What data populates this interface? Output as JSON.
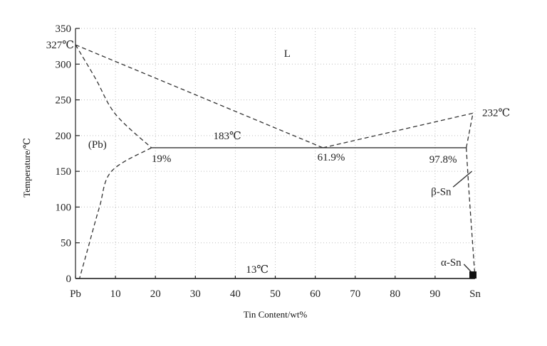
{
  "chart_data": {
    "type": "line",
    "xlabel": "Tin Content/wt%",
    "ylabel": "Temperature/℃",
    "xlim": [
      0,
      100
    ],
    "ylim": [
      0,
      350
    ],
    "x_ticks": [
      {
        "value": 0,
        "label": "Pb"
      },
      {
        "value": 10,
        "label": "10"
      },
      {
        "value": 20,
        "label": "20"
      },
      {
        "value": 30,
        "label": "30"
      },
      {
        "value": 40,
        "label": "40"
      },
      {
        "value": 50,
        "label": "50"
      },
      {
        "value": 60,
        "label": "60"
      },
      {
        "value": 70,
        "label": "70"
      },
      {
        "value": 80,
        "label": "80"
      },
      {
        "value": 90,
        "label": "90"
      },
      {
        "value": 100,
        "label": "Sn"
      }
    ],
    "y_ticks": [
      "0",
      "50",
      "100",
      "150",
      "200",
      "250",
      "300",
      "350"
    ],
    "grid": true,
    "series": [
      {
        "style": "dashed",
        "points": [
          [
            0,
            327
          ],
          [
            61.9,
            183
          ]
        ]
      },
      {
        "style": "dashed",
        "points": [
          [
            61.9,
            183
          ],
          [
            100,
            232
          ]
        ]
      },
      {
        "style": "dashed",
        "points": [
          [
            0,
            327
          ],
          [
            5,
            280
          ],
          [
            10,
            230
          ],
          [
            19,
            183
          ]
        ]
      },
      {
        "style": "dashed",
        "points": [
          [
            19,
            183
          ],
          [
            9,
            150
          ],
          [
            6,
            100
          ],
          [
            3,
            40
          ],
          [
            1,
            0
          ]
        ]
      },
      {
        "style": "solid",
        "points": [
          [
            19,
            183
          ],
          [
            97.8,
            183
          ]
        ]
      },
      {
        "style": "dashed",
        "points": [
          [
            97.8,
            183
          ],
          [
            99.5,
            232
          ]
        ]
      },
      {
        "style": "dashed",
        "points": [
          [
            97.8,
            183
          ],
          [
            98.5,
            120
          ],
          [
            99.5,
            40
          ],
          [
            100,
            0
          ]
        ]
      },
      {
        "style": "solid",
        "points": [
          [
            0,
            0
          ],
          [
            100,
            0
          ]
        ]
      }
    ],
    "annotations": [
      {
        "text": "327℃",
        "x": 0,
        "y": 327
      },
      {
        "text": "L",
        "x": 53,
        "y": 315
      },
      {
        "text": "232℃",
        "x": 100,
        "y": 232
      },
      {
        "text": "(Pb)",
        "x": 5.5,
        "y": 188
      },
      {
        "text": "183℃",
        "x": 38,
        "y": 200
      },
      {
        "text": "19%",
        "x": 21.5,
        "y": 168
      },
      {
        "text": "61.9%",
        "x": 64,
        "y": 170
      },
      {
        "text": "97.8%",
        "x": 92,
        "y": 167
      },
      {
        "text": "β-Sn",
        "x": 91.5,
        "y": 122
      },
      {
        "text": "α-Sn",
        "x": 94,
        "y": 23
      },
      {
        "text": "13℃",
        "x": 45.5,
        "y": 13
      }
    ]
  }
}
